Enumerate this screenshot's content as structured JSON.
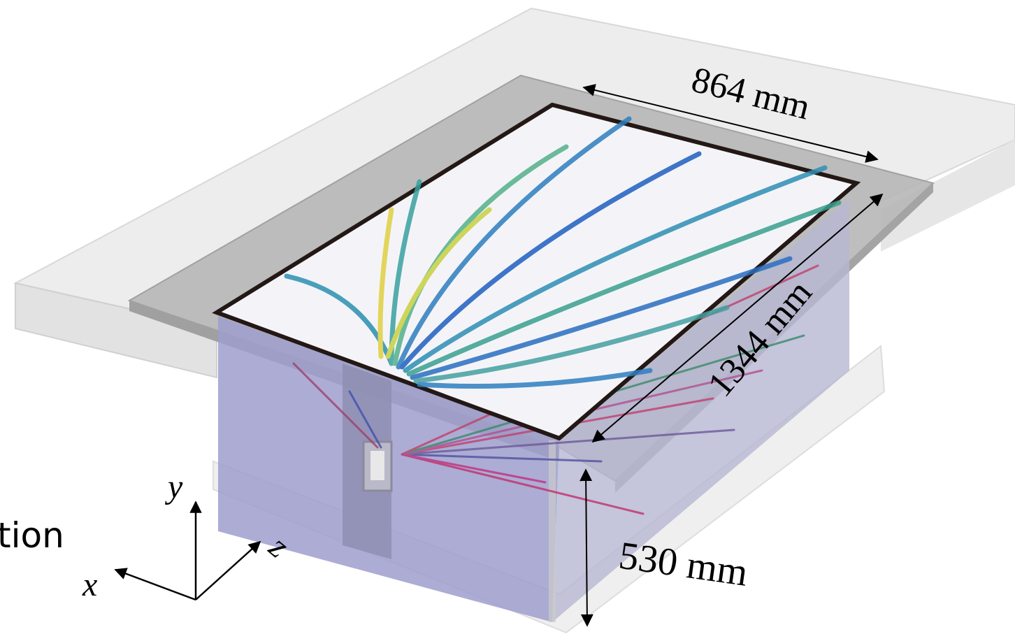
{
  "dimensions": {
    "width": "864 mm",
    "length": "1344 mm",
    "height": "530 mm"
  },
  "axes": {
    "x": "x",
    "y": "y",
    "z": "z"
  },
  "side_text": "tion"
}
